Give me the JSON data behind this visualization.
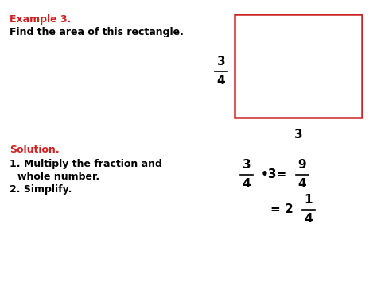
{
  "background_color": "#ffffff",
  "title_red": "Example 3.",
  "title_black": "Find the area of this rectangle.",
  "solution_red": "Solution.",
  "step1": "1. Multiply the fraction and",
  "step1b": "   whole number.",
  "step2": "2. Simplify.",
  "rect_color": "#cc2222",
  "font_size_main": 9,
  "font_size_math": 11
}
